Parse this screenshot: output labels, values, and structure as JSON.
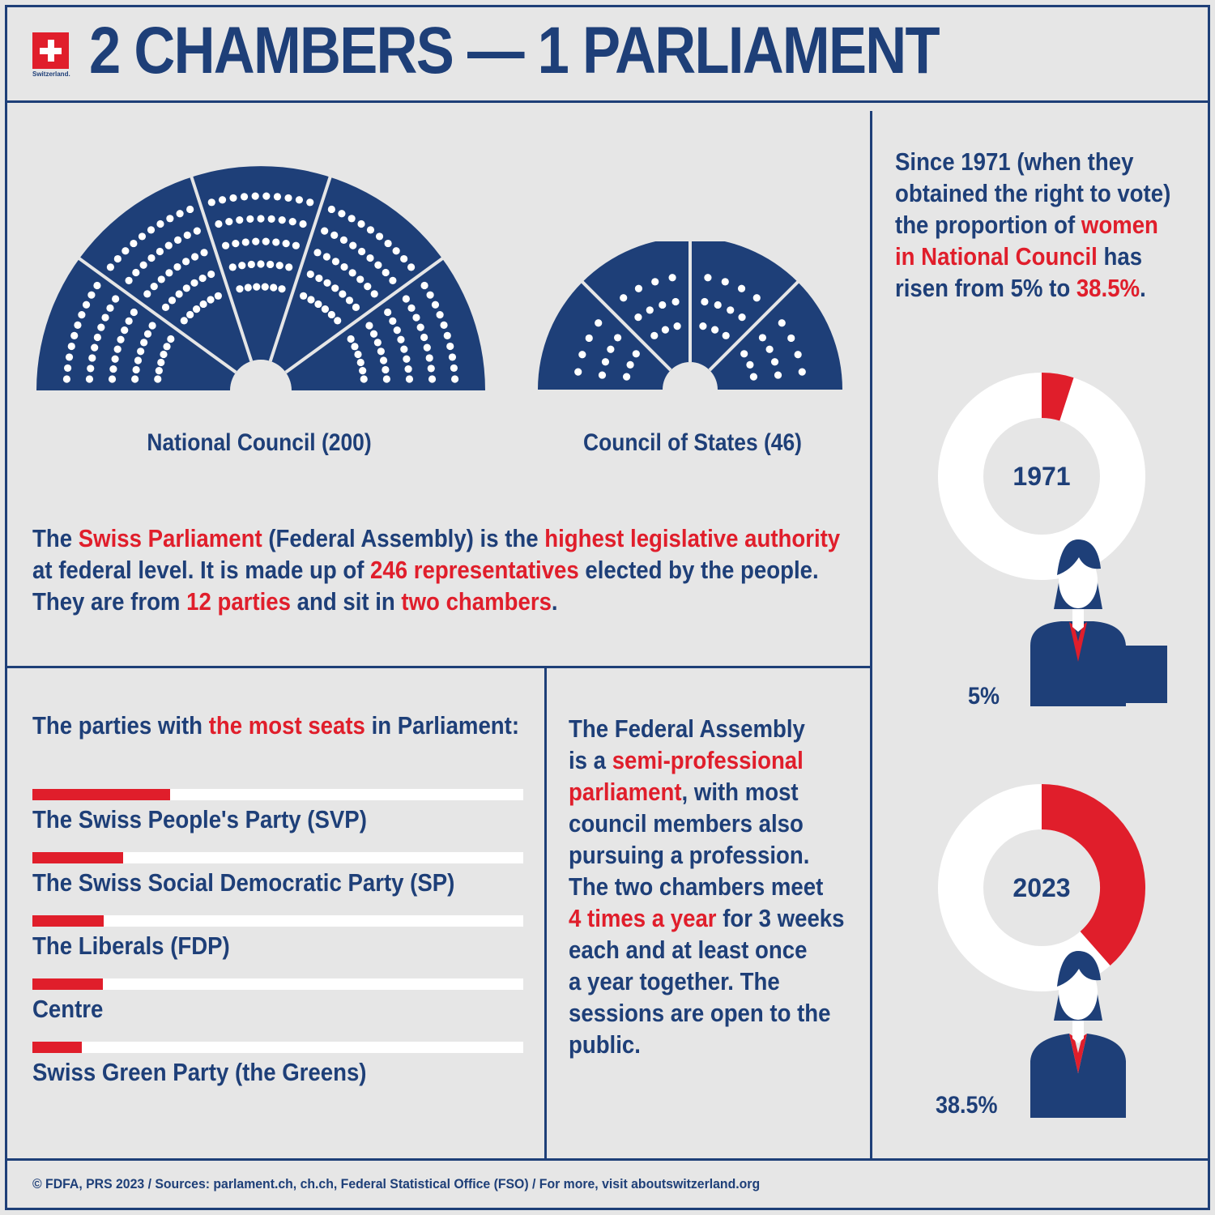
{
  "header": {
    "flag_label": "Switzerland.",
    "title": "2 CHAMBERS — 1 PARLIAMENT"
  },
  "chambers": [
    {
      "label": "National Council (200)",
      "seats": 200
    },
    {
      "label": "Council of States (46)",
      "seats": 46
    }
  ],
  "intro": {
    "l1a": "The ",
    "l1b": "Swiss Parliament",
    "l1c": " (Federal Assembly) is the ",
    "l1d": "highest legislative authority",
    "l2a": "at federal level. It is made up of ",
    "l2b": "246 representatives",
    "l2c": " elected by the people.",
    "l3a": "They are from ",
    "l3b": "12 parties",
    "l3c": " and sit in ",
    "l3d": "two chambers",
    "l3e": "."
  },
  "parties": {
    "title_a": "The parties with ",
    "title_b": "the most seats",
    "title_c": " in Parliament:",
    "items": [
      {
        "name": "The Swiss People's Party (SVP)",
        "share": 0.28
      },
      {
        "name": "The Swiss Social Democratic Party (SP)",
        "share": 0.185
      },
      {
        "name": "The Liberals (FDP)",
        "share": 0.145
      },
      {
        "name": "Centre",
        "share": 0.143
      },
      {
        "name": "Swiss Green Party (the Greens)",
        "share": 0.1
      }
    ]
  },
  "assembly": {
    "l1": "The Federal Assembly",
    "l2a": "is a ",
    "l2b": "semi-professional",
    "l3a": "parliament",
    "l3b": ", with most",
    "l4": "council members also",
    "l5": "pursuing a profession.",
    "l6": "The two chambers meet",
    "l7a": "4 times a year",
    "l7b": " for 3 weeks",
    "l8": "each and at least once",
    "l9": "a year together. The",
    "l10": "sessions are open to the",
    "l11": "public."
  },
  "women": {
    "l1": "Since 1971 (when they",
    "l2": "obtained the right to vote)",
    "l3a": "the proportion of ",
    "l3b": "women",
    "l4a": "in National Council",
    "l4b": " has",
    "l5a": "risen from 5% to ",
    "l5b": "38.5%",
    "l5c": ".",
    "donuts": [
      {
        "year": "1971",
        "percent": 5,
        "label": "5%"
      },
      {
        "year": "2023",
        "percent": 38.5,
        "label": "38.5%"
      }
    ]
  },
  "footer": {
    "credits": "© FDFA, PRS 2023 / Sources: parlament.ch, ch.ch, Federal Statistical Office (FSO) / For more, visit aboutswitzerland.org"
  },
  "colors": {
    "navy": "#1e3f78",
    "red": "#e01e2b",
    "background": "#e6e6e6"
  }
}
